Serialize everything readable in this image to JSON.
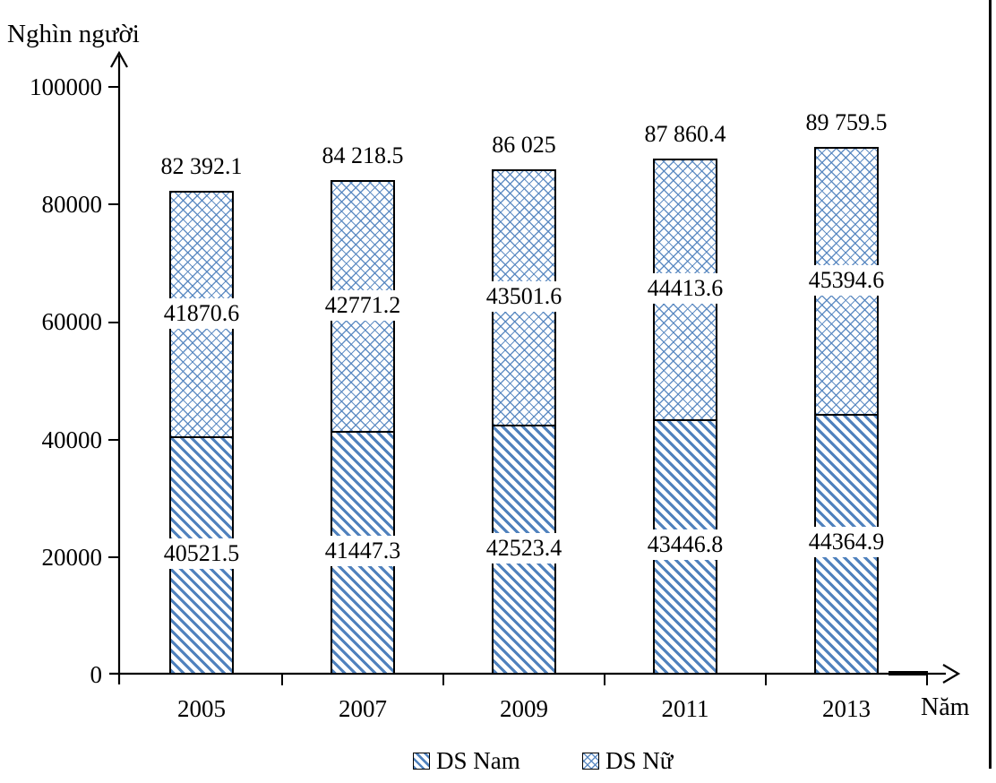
{
  "page": {
    "background": "#ffffff"
  },
  "colors": {
    "hatch_blue": "#4f81bd",
    "axis_black": "#000000"
  },
  "chart_data": {
    "type": "bar",
    "stacked": true,
    "title": "",
    "ylabel": "Nghìn người",
    "xlabel": "Năm",
    "categories": [
      "2005",
      "2007",
      "2009",
      "2011",
      "2013"
    ],
    "series": [
      {
        "name": "DS Nam",
        "pattern": "diagonal-hatch",
        "values": [
          40521.5,
          41447.3,
          42523.4,
          43446.8,
          44364.9
        ],
        "value_labels": [
          "40521.5",
          "41447.3",
          "42523.4",
          "43446.8",
          "44364.9"
        ]
      },
      {
        "name": "DS Nữ",
        "pattern": "diamond-crosshatch",
        "values": [
          41870.6,
          42771.2,
          43501.6,
          44413.6,
          45394.6
        ],
        "value_labels": [
          "41870.6",
          "42771.2",
          "43501.6",
          "44413.6",
          "45394.6"
        ]
      }
    ],
    "totals": [
      82392.1,
      84218.5,
      86025,
      87860.4,
      89759.5
    ],
    "total_labels": [
      "82 392.1",
      "84 218.5",
      "86 025",
      "87 860.4",
      "89 759.5"
    ],
    "ylim": [
      0,
      100000
    ],
    "yticks": [
      0,
      20000,
      40000,
      60000,
      80000,
      100000
    ],
    "ytick_labels": [
      "0",
      "20000",
      "40000",
      "60000",
      "80000",
      "100000"
    ],
    "grid": false,
    "legend_position": "bottom"
  }
}
